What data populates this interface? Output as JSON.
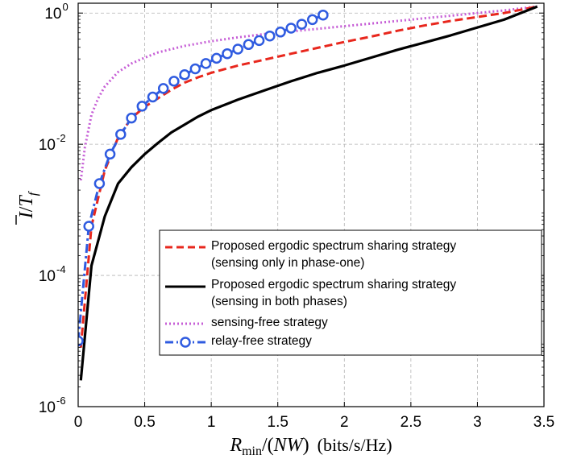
{
  "chart_data": {
    "type": "line",
    "title": "",
    "xlabel": "R_min/(NW) (bits/s/Hz)",
    "xlabel_math": "R",
    "xlabel_sub": "min",
    "xlabel_mid": "/(",
    "xlabel_nw": "NW",
    "xlabel_close": ")",
    "xlabel_units": "(bits/s/Hz)",
    "ylabel": "Ī/T_f",
    "ylabel_main": "I",
    "ylabel_slash": "/",
    "ylabel_t": "T",
    "ylabel_sub": "f",
    "xlim": [
      0,
      3.5
    ],
    "ylim_log10": [
      -6,
      0.15
    ],
    "yscale": "log",
    "grid": true,
    "x_ticks": [
      "0",
      "0.5",
      "1",
      "1.5",
      "2",
      "2.5",
      "3",
      "3.5"
    ],
    "y_ticks": [
      {
        "base": "10",
        "exp": "0"
      },
      {
        "base": "10",
        "exp": "-2"
      },
      {
        "base": "10",
        "exp": "-4"
      },
      {
        "base": "10",
        "exp": "-6"
      }
    ],
    "legend_position": "lower-right",
    "series": [
      {
        "name": "Proposed ergodic spectrum sharing strategy (sensing only in phase-one)",
        "legend_line1": "Proposed ergodic spectrum sharing strategy",
        "legend_line2": "(sensing only in phase-one)",
        "color": "#e8271d",
        "style": "dashed",
        "x": [
          0.02,
          0.1,
          0.2,
          0.3,
          0.4,
          0.5,
          0.6,
          0.7,
          0.8,
          0.9,
          1.0,
          1.2,
          1.4,
          1.6,
          1.8,
          2.0,
          2.2,
          2.4,
          2.6,
          2.8,
          3.0,
          3.2,
          3.45
        ],
        "log10_y": [
          -5.1,
          -3.25,
          -2.4,
          -1.9,
          -1.6,
          -1.43,
          -1.3,
          -1.17,
          -1.06,
          -0.98,
          -0.91,
          -0.8,
          -0.71,
          -0.62,
          -0.53,
          -0.44,
          -0.36,
          -0.27,
          -0.19,
          -0.12,
          -0.06,
          0.0,
          0.1
        ]
      },
      {
        "name": "Proposed ergodic spectrum sharing strategy (sensing in both phases)",
        "legend_line1": "Proposed ergodic spectrum sharing strategy",
        "legend_line2": "(sensing in both phases)",
        "color": "#000000",
        "style": "solid",
        "x": [
          0.02,
          0.1,
          0.2,
          0.3,
          0.4,
          0.5,
          0.6,
          0.7,
          0.8,
          0.9,
          1.0,
          1.2,
          1.4,
          1.6,
          1.8,
          2.0,
          2.2,
          2.4,
          2.6,
          2.8,
          3.0,
          3.2,
          3.45
        ],
        "log10_y": [
          -5.6,
          -3.85,
          -3.1,
          -2.6,
          -2.35,
          -2.15,
          -1.98,
          -1.82,
          -1.7,
          -1.58,
          -1.48,
          -1.32,
          -1.18,
          -1.04,
          -0.91,
          -0.8,
          -0.68,
          -0.56,
          -0.45,
          -0.34,
          -0.22,
          -0.1,
          0.1
        ]
      },
      {
        "name": "sensing-free strategy",
        "legend_line1": "sensing-free strategy",
        "color": "#c65ed6",
        "style": "dotted",
        "x": [
          0.02,
          0.05,
          0.1,
          0.15,
          0.2,
          0.3,
          0.4,
          0.5,
          0.6,
          0.8,
          1.0,
          1.2,
          1.4,
          1.6,
          1.8,
          2.0,
          2.2,
          2.4,
          2.6,
          2.8,
          3.0,
          3.2,
          3.45
        ],
        "log10_y": [
          -2.55,
          -2.05,
          -1.55,
          -1.3,
          -1.12,
          -0.9,
          -0.77,
          -0.68,
          -0.6,
          -0.5,
          -0.43,
          -0.37,
          -0.32,
          -0.28,
          -0.24,
          -0.2,
          -0.16,
          -0.12,
          -0.08,
          -0.04,
          0.0,
          0.04,
          0.1
        ]
      },
      {
        "name": "relay-free strategy",
        "legend_line1": "relay-free strategy",
        "color": "#2f5be0",
        "style": "dashdot-circle",
        "x": [
          0.0,
          0.08,
          0.16,
          0.24,
          0.32,
          0.4,
          0.48,
          0.56,
          0.64,
          0.72,
          0.8,
          0.88,
          0.96,
          1.04,
          1.12,
          1.2,
          1.28,
          1.36,
          1.44,
          1.52,
          1.6,
          1.68,
          1.76,
          1.84
        ],
        "log10_y": [
          -5.0,
          -3.25,
          -2.6,
          -2.15,
          -1.85,
          -1.6,
          -1.42,
          -1.28,
          -1.15,
          -1.04,
          -0.94,
          -0.85,
          -0.77,
          -0.69,
          -0.62,
          -0.55,
          -0.48,
          -0.42,
          -0.35,
          -0.29,
          -0.23,
          -0.17,
          -0.1,
          -0.03
        ]
      }
    ]
  }
}
